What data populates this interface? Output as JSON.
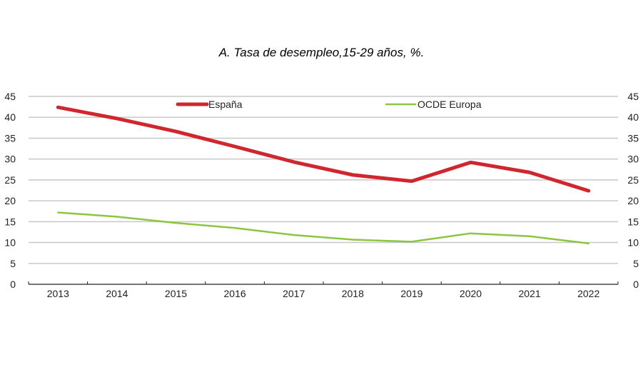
{
  "chart_data": {
    "type": "line",
    "title": "A. Tasa de desempleo,15-29 años, %.",
    "categories": [
      "2013",
      "2014",
      "2015",
      "2016",
      "2017",
      "2018",
      "2019",
      "2020",
      "2021",
      "2022"
    ],
    "series": [
      {
        "name": "España",
        "color": "#d0262e",
        "values": [
          42.4,
          39.7,
          36.6,
          33.0,
          29.3,
          26.2,
          24.7,
          29.2,
          26.8,
          22.4
        ]
      },
      {
        "name": "OCDE Europa",
        "color": "#8cc63f",
        "values": [
          17.2,
          16.2,
          14.7,
          13.5,
          11.8,
          10.7,
          10.2,
          12.2,
          11.5,
          9.8
        ]
      }
    ],
    "ylim": [
      0,
      45
    ],
    "yticks": [
      0,
      5,
      10,
      15,
      20,
      25,
      30,
      35,
      40,
      45
    ],
    "secondary_y_axis": true,
    "grid": true,
    "legend": "top"
  }
}
